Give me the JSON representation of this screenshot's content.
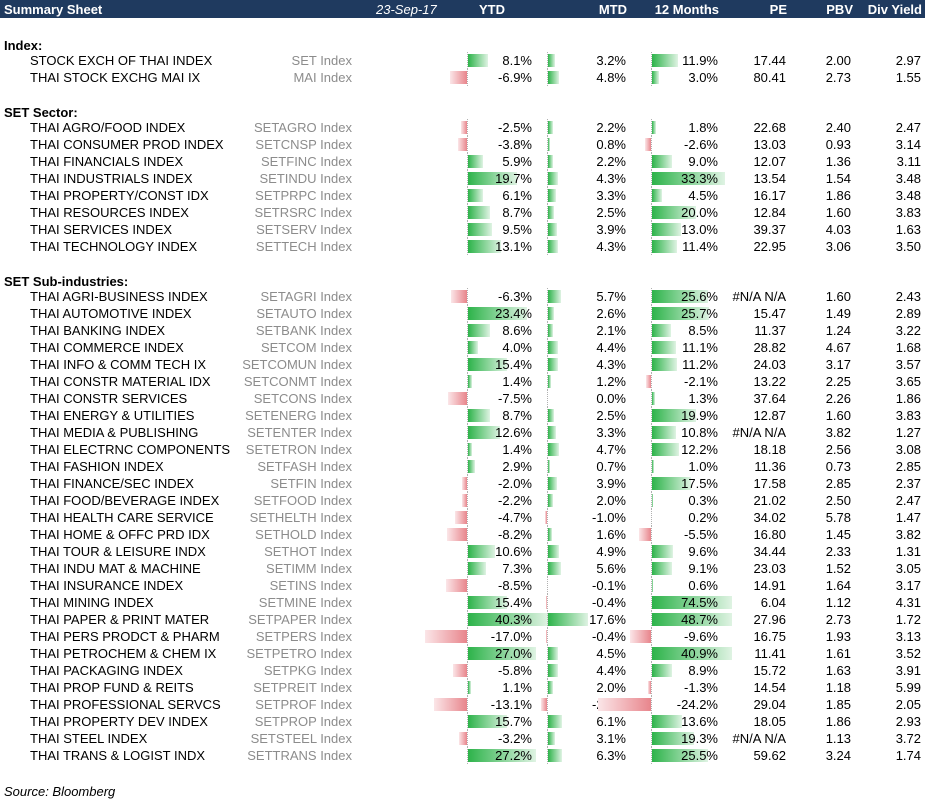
{
  "header": {
    "title": "Summary Sheet",
    "date": "23-Sep-17",
    "columns": [
      "YTD",
      "MTD",
      "12 Months",
      "PE",
      "PBV",
      "Div Yield"
    ]
  },
  "colors": {
    "header_bg": "#1f3a5f",
    "bar_positive": "#2db34a",
    "bar_negative": "#e8858c"
  },
  "sections": [
    {
      "title": "Index:",
      "rows": [
        {
          "name": "STOCK EXCH OF THAI INDEX",
          "ticker": "SET Index",
          "ytd": "8.1%",
          "mtd": "3.2%",
          "m12": "11.9%",
          "pe": "17.44",
          "pbv": "2.00",
          "dy": "2.97"
        },
        {
          "name": "THAI STOCK EXCHG MAI IX",
          "ticker": "MAI Index",
          "ytd": "-6.9%",
          "mtd": "4.8%",
          "m12": "3.0%",
          "pe": "80.41",
          "pbv": "2.73",
          "dy": "1.55"
        }
      ]
    },
    {
      "title": "SET Sector:",
      "rows": [
        {
          "name": "THAI AGRO/FOOD INDEX",
          "ticker": "SETAGRO Index",
          "ytd": "-2.5%",
          "mtd": "2.2%",
          "m12": "1.8%",
          "pe": "22.68",
          "pbv": "2.40",
          "dy": "2.47"
        },
        {
          "name": "THAI CONSUMER PROD INDEX",
          "ticker": "SETCNSP Index",
          "ytd": "-3.8%",
          "mtd": "0.8%",
          "m12": "-2.6%",
          "pe": "13.03",
          "pbv": "0.93",
          "dy": "3.14"
        },
        {
          "name": "THAI FINANCIALS INDEX",
          "ticker": "SETFINC Index",
          "ytd": "5.9%",
          "mtd": "2.2%",
          "m12": "9.0%",
          "pe": "12.07",
          "pbv": "1.36",
          "dy": "3.11"
        },
        {
          "name": "THAI INDUSTRIALS INDEX",
          "ticker": "SETINDU Index",
          "ytd": "19.7%",
          "mtd": "4.3%",
          "m12": "33.3%",
          "pe": "13.54",
          "pbv": "1.54",
          "dy": "3.48"
        },
        {
          "name": "THAI PROPERTY/CONST IDX",
          "ticker": "SETPRPC Index",
          "ytd": "6.1%",
          "mtd": "3.3%",
          "m12": "4.5%",
          "pe": "16.17",
          "pbv": "1.86",
          "dy": "3.48"
        },
        {
          "name": "THAI RESOURCES INDEX",
          "ticker": "SETRSRC Index",
          "ytd": "8.7%",
          "mtd": "2.5%",
          "m12": "20.0%",
          "pe": "12.84",
          "pbv": "1.60",
          "dy": "3.83"
        },
        {
          "name": "THAI SERVICES INDEX",
          "ticker": "SETSERV Index",
          "ytd": "9.5%",
          "mtd": "3.9%",
          "m12": "13.0%",
          "pe": "39.37",
          "pbv": "4.03",
          "dy": "1.63"
        },
        {
          "name": "THAI TECHNOLOGY INDEX",
          "ticker": "SETTECH Index",
          "ytd": "13.1%",
          "mtd": "4.3%",
          "m12": "11.4%",
          "pe": "22.95",
          "pbv": "3.06",
          "dy": "3.50"
        }
      ]
    },
    {
      "title": "SET Sub-industries:",
      "rows": [
        {
          "name": "THAI AGRI-BUSINESS INDEX",
          "ticker": "SETAGRI Index",
          "ytd": "-6.3%",
          "mtd": "5.7%",
          "m12": "25.6%",
          "pe": "#N/A N/A",
          "pbv": "1.60",
          "dy": "2.43"
        },
        {
          "name": "THAI AUTOMOTIVE INDEX",
          "ticker": "SETAUTO Index",
          "ytd": "23.4%",
          "mtd": "2.6%",
          "m12": "25.7%",
          "pe": "15.47",
          "pbv": "1.49",
          "dy": "2.89"
        },
        {
          "name": "THAI BANKING INDEX",
          "ticker": "SETBANK Index",
          "ytd": "8.6%",
          "mtd": "2.1%",
          "m12": "8.5%",
          "pe": "11.37",
          "pbv": "1.24",
          "dy": "3.22"
        },
        {
          "name": "THAI COMMERCE INDEX",
          "ticker": "SETCOM Index",
          "ytd": "4.0%",
          "mtd": "4.4%",
          "m12": "11.1%",
          "pe": "28.82",
          "pbv": "4.67",
          "dy": "1.68"
        },
        {
          "name": "THAI INFO & COMM TECH IX",
          "ticker": "SETCOMUN Index",
          "ytd": "15.4%",
          "mtd": "4.3%",
          "m12": "11.2%",
          "pe": "24.03",
          "pbv": "3.17",
          "dy": "3.57"
        },
        {
          "name": "THAI CONSTR MATERIAL IDX",
          "ticker": "SETCONMT Index",
          "ytd": "1.4%",
          "mtd": "1.2%",
          "m12": "-2.1%",
          "pe": "13.22",
          "pbv": "2.25",
          "dy": "3.65"
        },
        {
          "name": "THAI CONSTR SERVICES",
          "ticker": "SETCONS Index",
          "ytd": "-7.5%",
          "mtd": "0.0%",
          "m12": "1.3%",
          "pe": "37.64",
          "pbv": "2.26",
          "dy": "1.86"
        },
        {
          "name": "THAI ENERGY & UTILITIES",
          "ticker": "SETENERG Index",
          "ytd": "8.7%",
          "mtd": "2.5%",
          "m12": "19.9%",
          "pe": "12.87",
          "pbv": "1.60",
          "dy": "3.83"
        },
        {
          "name": "THAI MEDIA & PUBLISHING",
          "ticker": "SETENTER Index",
          "ytd": "12.6%",
          "mtd": "3.3%",
          "m12": "10.8%",
          "pe": "#N/A N/A",
          "pbv": "3.82",
          "dy": "1.27"
        },
        {
          "name": "THAI ELECTRNC COMPONENTS",
          "ticker": "SETETRON Index",
          "ytd": "1.4%",
          "mtd": "4.7%",
          "m12": "12.2%",
          "pe": "18.18",
          "pbv": "2.56",
          "dy": "3.08"
        },
        {
          "name": "THAI FASHION INDEX",
          "ticker": "SETFASH Index",
          "ytd": "2.9%",
          "mtd": "0.7%",
          "m12": "1.0%",
          "pe": "11.36",
          "pbv": "0.73",
          "dy": "2.85"
        },
        {
          "name": "THAI FINANCE/SEC INDEX",
          "ticker": "SETFIN Index",
          "ytd": "-2.0%",
          "mtd": "3.9%",
          "m12": "17.5%",
          "pe": "17.58",
          "pbv": "2.85",
          "dy": "2.37"
        },
        {
          "name": "THAI FOOD/BEVERAGE INDEX",
          "ticker": "SETFOOD Index",
          "ytd": "-2.2%",
          "mtd": "2.0%",
          "m12": "0.3%",
          "pe": "21.02",
          "pbv": "2.50",
          "dy": "2.47"
        },
        {
          "name": "THAI HEALTH CARE SERVICE",
          "ticker": "SETHELTH Index",
          "ytd": "-4.7%",
          "mtd": "-1.0%",
          "m12": "0.2%",
          "pe": "34.02",
          "pbv": "5.78",
          "dy": "1.47"
        },
        {
          "name": "THAI HOME & OFFC PRD IDX",
          "ticker": "SETHOLD Index",
          "ytd": "-8.2%",
          "mtd": "1.6%",
          "m12": "-5.5%",
          "pe": "16.80",
          "pbv": "1.45",
          "dy": "3.82"
        },
        {
          "name": "THAI TOUR & LEISURE INDX",
          "ticker": "SETHOT Index",
          "ytd": "10.6%",
          "mtd": "4.9%",
          "m12": "9.6%",
          "pe": "34.44",
          "pbv": "2.33",
          "dy": "1.31"
        },
        {
          "name": "THAI INDU MAT & MACHINE",
          "ticker": "SETIMM Index",
          "ytd": "7.3%",
          "mtd": "5.6%",
          "m12": "9.1%",
          "pe": "23.03",
          "pbv": "1.52",
          "dy": "3.05"
        },
        {
          "name": "THAI INSURANCE INDEX",
          "ticker": "SETINS Index",
          "ytd": "-8.5%",
          "mtd": "-0.1%",
          "m12": "0.6%",
          "pe": "14.91",
          "pbv": "1.64",
          "dy": "3.17"
        },
        {
          "name": "THAI MINING INDEX",
          "ticker": "SETMINE Index",
          "ytd": "15.4%",
          "mtd": "-0.4%",
          "m12": "74.5%",
          "pe": "6.04",
          "pbv": "1.12",
          "dy": "4.31"
        },
        {
          "name": "THAI PAPER & PRINT MATER",
          "ticker": "SETPAPER Index",
          "ytd": "40.3%",
          "mtd": "17.6%",
          "m12": "48.7%",
          "pe": "27.96",
          "pbv": "2.73",
          "dy": "1.72"
        },
        {
          "name": "THAI PERS PRODCT & PHARM",
          "ticker": "SETPERS Index",
          "ytd": "-17.0%",
          "mtd": "-0.4%",
          "m12": "-9.6%",
          "pe": "16.75",
          "pbv": "1.93",
          "dy": "3.13"
        },
        {
          "name": "THAI PETROCHEM & CHEM IX",
          "ticker": "SETPETRO Index",
          "ytd": "27.0%",
          "mtd": "4.5%",
          "m12": "40.9%",
          "pe": "11.41",
          "pbv": "1.61",
          "dy": "3.52"
        },
        {
          "name": "THAI PACKAGING INDEX",
          "ticker": "SETPKG Index",
          "ytd": "-5.8%",
          "mtd": "4.4%",
          "m12": "8.9%",
          "pe": "15.72",
          "pbv": "1.63",
          "dy": "3.91"
        },
        {
          "name": "THAI PROP FUND & REITS",
          "ticker": "SETPREIT Index",
          "ytd": "1.1%",
          "mtd": "2.0%",
          "m12": "-1.3%",
          "pe": "14.54",
          "pbv": "1.18",
          "dy": "5.99"
        },
        {
          "name": "THAI PROFESSIONAL SERVCS",
          "ticker": "SETPROF Index",
          "ytd": "-13.1%",
          "mtd": "-2.5%",
          "m12": "-24.2%",
          "pe": "29.04",
          "pbv": "1.85",
          "dy": "2.05"
        },
        {
          "name": "THAI PROPERTY DEV INDEX",
          "ticker": "SETPROP Index",
          "ytd": "15.7%",
          "mtd": "6.1%",
          "m12": "13.6%",
          "pe": "18.05",
          "pbv": "1.86",
          "dy": "2.93"
        },
        {
          "name": "THAI STEEL INDEX",
          "ticker": "SETSTEEL Index",
          "ytd": "-3.2%",
          "mtd": "3.1%",
          "m12": "19.3%",
          "pe": "#N/A N/A",
          "pbv": "1.13",
          "dy": "3.72"
        },
        {
          "name": "THAI TRANS & LOGIST INDX",
          "ticker": "SETTRANS Index",
          "ytd": "27.2%",
          "mtd": "6.3%",
          "m12": "25.5%",
          "pe": "59.62",
          "pbv": "3.24",
          "dy": "1.74"
        }
      ]
    }
  ],
  "source": "Source: Bloomberg"
}
